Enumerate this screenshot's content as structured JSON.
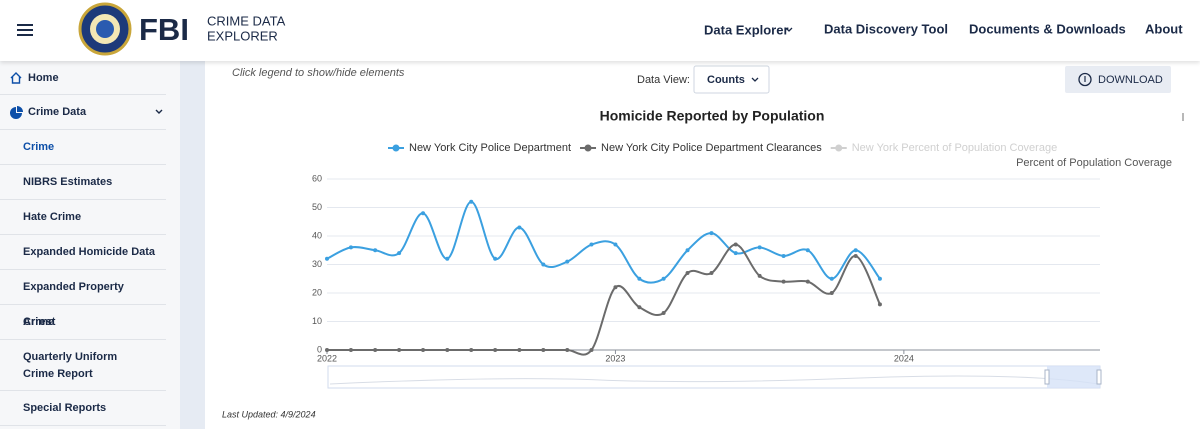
{
  "header": {
    "logo_text": "FBI",
    "brand_line1": "CRIME DATA",
    "brand_line2": "EXPLORER",
    "nav": [
      "Data Explorer",
      "Data Discovery Tool",
      "Documents & Downloads",
      "About"
    ]
  },
  "sidebar": {
    "items": [
      "Home",
      "Crime Data",
      "Crime",
      "NIBRS Estimates",
      "Hate Crime",
      "Expanded Homicide Data",
      "Expanded Property Crime",
      "Arrest",
      "Quarterly Uniform Crime Report",
      "Special Reports"
    ]
  },
  "controls": {
    "hint": "Click legend to show/hide elements",
    "data_view_label": "Data View:",
    "data_view_value": "Counts",
    "download": "DOWNLOAD"
  },
  "footer": {
    "last_updated": "Last Updated: 4/9/2024"
  },
  "chart_data": {
    "type": "line",
    "title": "Homicide Reported by Population",
    "y2_label": "Percent of Population Coverage",
    "x": [
      2022,
      2022.083,
      2022.167,
      2022.25,
      2022.333,
      2022.417,
      2022.5,
      2022.583,
      2022.667,
      2022.75,
      2022.833,
      2022.917,
      2023,
      2023.083,
      2023.167,
      2023.25,
      2023.333,
      2023.417,
      2023.5,
      2023.583,
      2023.667,
      2023.75,
      2023.833,
      2023.917
    ],
    "series": [
      {
        "name": "New York City Police Department",
        "color": "#3ba0e0",
        "values": [
          32,
          36,
          35,
          34,
          48,
          32,
          52,
          32,
          43,
          30,
          31,
          37,
          37,
          25,
          25,
          35,
          41,
          34,
          36,
          33,
          35,
          25,
          35,
          25
        ]
      },
      {
        "name": "New York City Police Department Clearances",
        "color": "#6b6b6b",
        "values": [
          0,
          0,
          0,
          0,
          0,
          0,
          0,
          0,
          0,
          0,
          0,
          0,
          22,
          15,
          13,
          27,
          27,
          37,
          26,
          24,
          24,
          20,
          33,
          16
        ]
      },
      {
        "name": "New York Percent of Population Coverage",
        "color": "#d0d0d0",
        "hidden": true
      }
    ],
    "xlim": [
      2022,
      2024.68
    ],
    "xticks": [
      2022,
      2023,
      2024
    ],
    "ylim": [
      0,
      60
    ],
    "yticks": [
      0,
      10,
      20,
      30,
      40,
      50,
      60
    ],
    "grid": true
  }
}
